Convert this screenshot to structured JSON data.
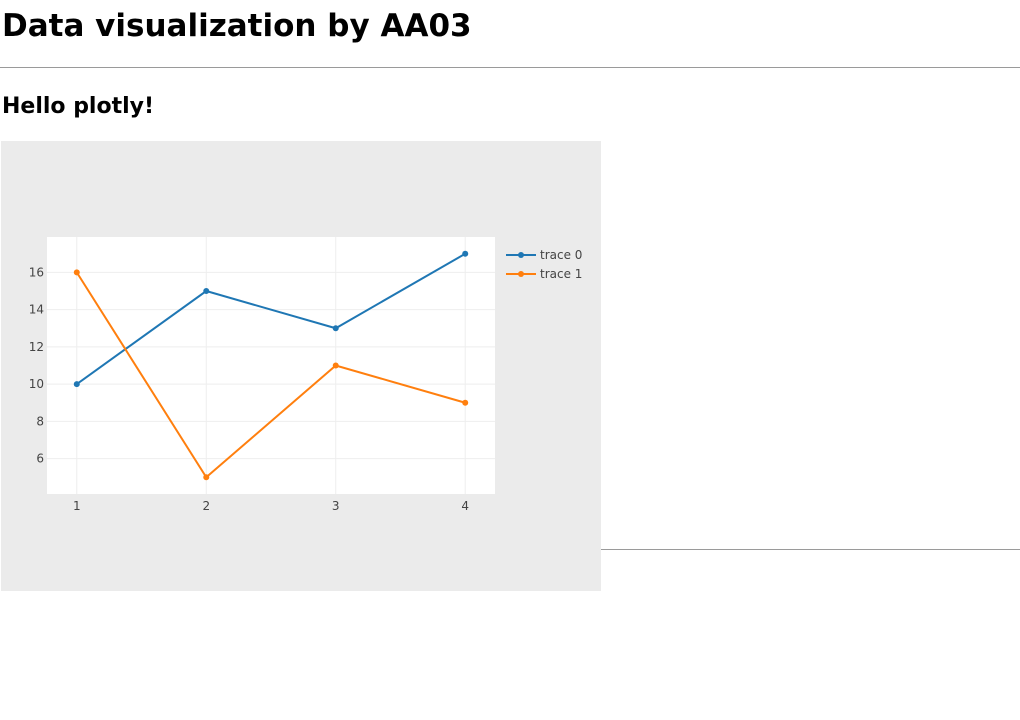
{
  "page": {
    "title": "Data visualization by AA03",
    "subtitle": "Hello plotly!"
  },
  "chart_data": {
    "type": "line",
    "x": [
      1,
      2,
      3,
      4
    ],
    "series": [
      {
        "name": "trace 0",
        "values": [
          10,
          15,
          13,
          17
        ],
        "color": "#1f77b4"
      },
      {
        "name": "trace 1",
        "values": [
          16,
          5,
          11,
          9
        ],
        "color": "#ff7f0e"
      }
    ],
    "xticks": [
      1,
      2,
      3,
      4
    ],
    "yticks": [
      6,
      8,
      10,
      12,
      14,
      16
    ],
    "xlim": [
      0.77,
      4.23
    ],
    "ylim": [
      4.1,
      17.9
    ],
    "grid": true,
    "legend_position": "top-right",
    "paper_color": "#ebebeb",
    "plot_color": "#ffffff"
  }
}
